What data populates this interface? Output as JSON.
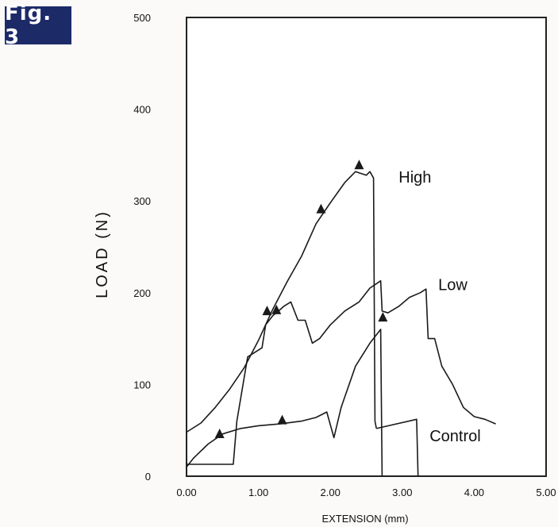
{
  "figure_label": "Fig. 3",
  "chart_data": {
    "type": "line",
    "title": "",
    "xlabel": "EXTENSION (mm)",
    "ylabel": "LOAD (N)",
    "xlim": [
      0,
      5
    ],
    "ylim": [
      0,
      500
    ],
    "x_ticks": [
      "0.00",
      "1.00",
      "2.00",
      "3.00",
      "4.00",
      "5.00"
    ],
    "y_ticks": [
      "0",
      "100",
      "200",
      "300",
      "400",
      "500"
    ],
    "grid": false,
    "series": [
      {
        "name": "High",
        "label_at": [
          2.95,
          320
        ],
        "points": [
          [
            0.0,
            48
          ],
          [
            0.2,
            58
          ],
          [
            0.4,
            75
          ],
          [
            0.6,
            95
          ],
          [
            0.8,
            118
          ],
          [
            1.0,
            148
          ],
          [
            1.2,
            182
          ],
          [
            1.4,
            212
          ],
          [
            1.6,
            240
          ],
          [
            1.8,
            275
          ],
          [
            2.0,
            298
          ],
          [
            2.2,
            320
          ],
          [
            2.35,
            332
          ],
          [
            2.5,
            328
          ],
          [
            2.55,
            332
          ],
          [
            2.6,
            325
          ],
          [
            2.62,
            60
          ],
          [
            2.64,
            52
          ]
        ],
        "markers": [
          [
            1.87,
            290
          ],
          [
            2.4,
            338
          ]
        ]
      },
      {
        "name": "Low",
        "label_at": [
          3.5,
          203
        ],
        "points": [
          [
            0.0,
            13
          ],
          [
            0.65,
            13
          ],
          [
            0.7,
            60
          ],
          [
            0.85,
            130
          ],
          [
            0.95,
            135
          ],
          [
            1.05,
            140
          ],
          [
            1.1,
            165
          ],
          [
            1.2,
            175
          ],
          [
            1.28,
            180
          ],
          [
            1.35,
            185
          ],
          [
            1.45,
            190
          ],
          [
            1.55,
            170
          ],
          [
            1.65,
            170
          ],
          [
            1.75,
            145
          ],
          [
            1.85,
            150
          ],
          [
            2.0,
            165
          ],
          [
            2.2,
            180
          ],
          [
            2.4,
            190
          ],
          [
            2.55,
            205
          ],
          [
            2.7,
            213
          ],
          [
            2.72,
            180
          ],
          [
            2.8,
            178
          ],
          [
            2.95,
            185
          ],
          [
            3.1,
            195
          ],
          [
            3.25,
            200
          ],
          [
            3.33,
            204
          ],
          [
            3.36,
            150
          ],
          [
            3.45,
            150
          ],
          [
            3.55,
            120
          ],
          [
            3.7,
            100
          ],
          [
            3.85,
            75
          ],
          [
            4.0,
            65
          ],
          [
            4.15,
            62
          ],
          [
            4.3,
            57
          ]
        ],
        "markers": [
          [
            1.12,
            179
          ],
          [
            1.25,
            180
          ],
          [
            2.73,
            172
          ]
        ]
      },
      {
        "name": "Control",
        "label_at": [
          3.38,
          38
        ],
        "points": [
          [
            0.0,
            10
          ],
          [
            0.1,
            20
          ],
          [
            0.3,
            35
          ],
          [
            0.5,
            46
          ],
          [
            0.75,
            52
          ],
          [
            1.0,
            55
          ],
          [
            1.3,
            57
          ],
          [
            1.6,
            60
          ],
          [
            1.8,
            64
          ],
          [
            1.95,
            70
          ],
          [
            2.05,
            42
          ],
          [
            2.15,
            75
          ],
          [
            2.35,
            120
          ],
          [
            2.55,
            145
          ],
          [
            2.7,
            160
          ],
          [
            2.72,
            0
          ]
        ],
        "markers": [
          [
            0.46,
            45
          ],
          [
            1.33,
            60
          ]
        ]
      },
      {
        "name": "",
        "label_at": null,
        "points": [
          [
            2.64,
            52
          ],
          [
            3.2,
            62
          ],
          [
            3.22,
            0
          ]
        ],
        "markers": []
      }
    ]
  }
}
